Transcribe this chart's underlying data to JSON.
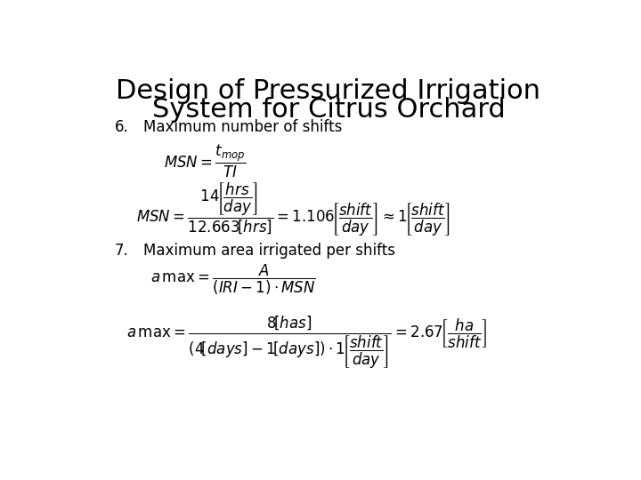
{
  "title_line1": "Design of Pressurized Irrigation",
  "title_line2": "System for Citrus Orchard",
  "bg_color": "#ffffff",
  "text_color": "#000000",
  "title_fontsize": 22,
  "label_fontsize": 12,
  "text_fontsize": 12,
  "math_fontsize": 12,
  "item6_label": "6.",
  "item6_text": "Maximum number of shifts",
  "item7_label": "7.",
  "item7_text": "Maximum area irrigated per shifts"
}
